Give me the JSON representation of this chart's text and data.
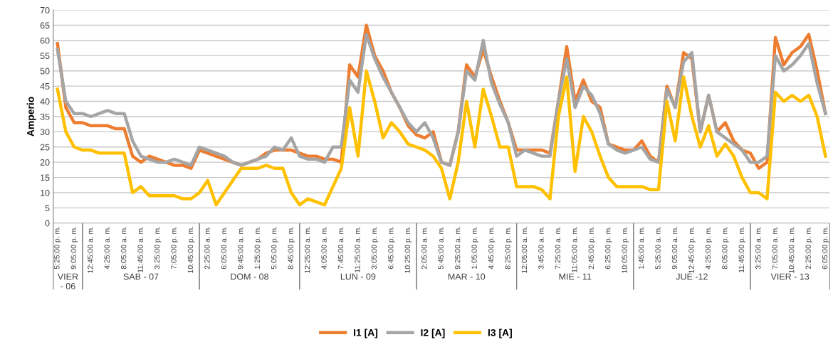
{
  "chart_data": {
    "type": "line",
    "ylabel": "Amperio",
    "categories": [
      "5:25:00 p. m.",
      null,
      "9:05:00 p. m.",
      null,
      "12:45:00 a. m.",
      null,
      "4:25:00 a. m.",
      null,
      "8:05:00 a. m.",
      null,
      "11:45:00 a. m.",
      null,
      "3:25:00 p. m.",
      null,
      "7:05:00 p. m.",
      null,
      "10:45:00 p. m.",
      null,
      "2:25:00 a. m.",
      null,
      "6:05:00 a. m.",
      null,
      "9:45:00 a. m.",
      null,
      "1:25:00 p. m.",
      null,
      "5:05:00 p. m.",
      null,
      "8:45:00 p. m.",
      null,
      "12:25:00 a. m.",
      null,
      "4:05:00 a. m.",
      null,
      "7:45:00 a. m.",
      null,
      "11:25:00 a. m.",
      null,
      "3:05:00 p. m.",
      null,
      "6:45:00 p. m.",
      null,
      "10:25:00 p. m.",
      null,
      "2:05:00 a. m.",
      null,
      "5:45:00 a. m.",
      null,
      "9:25:00 a. m.",
      null,
      "1:05:00 p. m.",
      null,
      "4:45:00 p. m.",
      null,
      "8:25:00 p. m.",
      null,
      "12:05:00 a. m.",
      null,
      "3:45:00 a. m.",
      null,
      "7:25:00 a. m.",
      null,
      "11:05:00 a. m.",
      null,
      "2:45:00 p. m.",
      null,
      "6:25:00 p. m.",
      null,
      "10:05:00 p. m.",
      null,
      "1:45:00 a. m.",
      null,
      "5:25:00 a. m.",
      null,
      "9:05:00 a. m.",
      null,
      "12:45:00 p. m.",
      null,
      "4:25:00 p. m.",
      null,
      "8:05:00 p. m.",
      null,
      "11:45:00 p. m.",
      null,
      "3:25:00 a. m.",
      null,
      "7:05:00 a. m.",
      null,
      "10:45:00 a. m.",
      null,
      "2:25:00 p. m.",
      null,
      "6:05:00 p. m."
    ],
    "series": [
      {
        "name": "I1 [A]",
        "color": "#ed7d31",
        "values": [
          59,
          38,
          33,
          33,
          32,
          32,
          32,
          31,
          31,
          22,
          20,
          22,
          21,
          20,
          19,
          19,
          18,
          24,
          23,
          22,
          21,
          20,
          19,
          20,
          21,
          23,
          24,
          24,
          24,
          23,
          22,
          22,
          21,
          21,
          20,
          52,
          48,
          65,
          55,
          50,
          43,
          38,
          32,
          29,
          28,
          30,
          20,
          19,
          30,
          52,
          48,
          57,
          48,
          40,
          33,
          24,
          24,
          24,
          24,
          23,
          40,
          58,
          40,
          47,
          40,
          38,
          26,
          25,
          24,
          24,
          27,
          22,
          20,
          45,
          38,
          56,
          54,
          30,
          42,
          30,
          33,
          27,
          24,
          23,
          18,
          20,
          61,
          52,
          56,
          58,
          62,
          50,
          36
        ]
      },
      {
        "name": "I2 [A]",
        "color": "#a5a5a5",
        "values": [
          57,
          40,
          36,
          36,
          35,
          36,
          37,
          36,
          36,
          27,
          22,
          21,
          20,
          20,
          21,
          20,
          19,
          25,
          24,
          23,
          22,
          20,
          19,
          20,
          21,
          22,
          25,
          24,
          28,
          22,
          21,
          21,
          20,
          25,
          25,
          47,
          43,
          62,
          54,
          48,
          43,
          38,
          33,
          30,
          33,
          28,
          20,
          19,
          30,
          50,
          47,
          60,
          46,
          39,
          33,
          22,
          24,
          23,
          22,
          22,
          40,
          54,
          38,
          45,
          42,
          36,
          26,
          24,
          23,
          24,
          25,
          21,
          20,
          44,
          38,
          53,
          56,
          30,
          42,
          30,
          28,
          26,
          24,
          20,
          20,
          22,
          55,
          50,
          52,
          55,
          59,
          46,
          36
        ]
      },
      {
        "name": "I3 [A]",
        "color": "#ffc000",
        "values": [
          44,
          30,
          25,
          24,
          24,
          23,
          23,
          23,
          23,
          10,
          12,
          9,
          9,
          9,
          9,
          8,
          8,
          10,
          14,
          6,
          10,
          14,
          18,
          18,
          18,
          19,
          18,
          18,
          10,
          6,
          8,
          7,
          6,
          12,
          18,
          38,
          22,
          50,
          40,
          28,
          33,
          30,
          26,
          25,
          24,
          22,
          18,
          8,
          20,
          40,
          25,
          44,
          35,
          25,
          25,
          12,
          12,
          12,
          11,
          8,
          35,
          48,
          17,
          35,
          30,
          22,
          15,
          12,
          12,
          12,
          12,
          11,
          11,
          40,
          27,
          48,
          35,
          25,
          32,
          22,
          26,
          22,
          15,
          10,
          10,
          8,
          43,
          40,
          42,
          40,
          42,
          35,
          22
        ]
      }
    ],
    "annotations": [
      "VIER\n- 06",
      "SAB - 07",
      "DOM - 08",
      "LUN - 09",
      "MAR - 10",
      "MIE - 11",
      "JUE -12",
      "VIER - 13"
    ],
    "ylim": [
      0,
      70
    ],
    "yticks": [
      0,
      5,
      10,
      15,
      20,
      25,
      30,
      35,
      40,
      45,
      50,
      55,
      60,
      65,
      70
    ],
    "grid": "y",
    "legend": "bottom",
    "marker": "none",
    "line_style": "solid"
  }
}
